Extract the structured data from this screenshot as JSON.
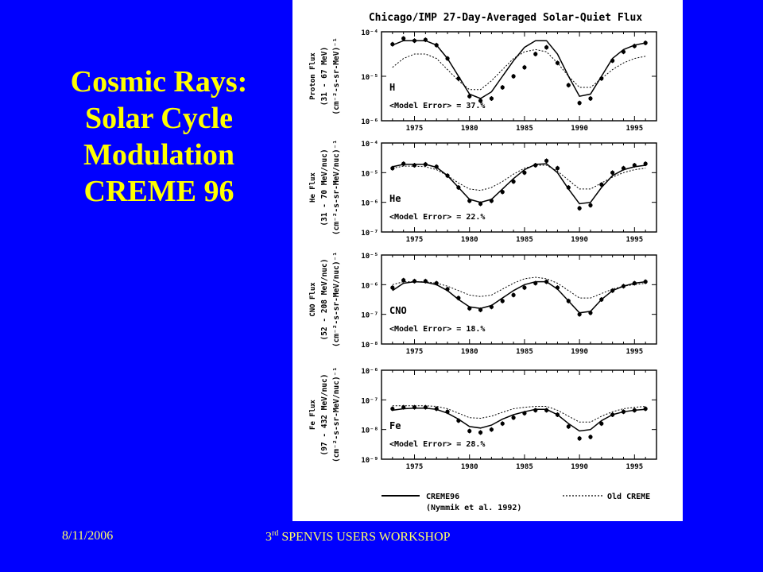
{
  "slide": {
    "title_lines": [
      "Cosmic Rays:",
      "Solar Cycle",
      "Modulation",
      "CREME 96"
    ],
    "footer_date": "8/11/2006",
    "footer_event_ordinal": "3",
    "footer_event_suffix": "rd",
    "footer_event_rest": " SPENVIS USERS WORKSHOP"
  },
  "colors": {
    "background": "#0000ff",
    "title": "#ffff00",
    "footer": "#ffff66",
    "figure_bg": "#ffffff",
    "ink": "#000000"
  },
  "chart_data": {
    "type": "line",
    "title": "Chicago/IMP 27-Day-Averaged Solar-Quiet Flux",
    "xlim": [
      1972,
      1997
    ],
    "x_ticks": [
      1975,
      1980,
      1985,
      1990,
      1995
    ],
    "legend_placement": "bottom",
    "legend": [
      {
        "label": "CREME96",
        "sublabel": "(Nymmik et al. 1992)",
        "style": "solid"
      },
      {
        "label": "Old CREME",
        "style": "dotted"
      }
    ],
    "panels": [
      {
        "species": "H",
        "ylabel_lines": [
          "Proton Flux",
          "(31 - 67 MeV)",
          "(cm⁻²-s-sr-MeV)⁻¹"
        ],
        "y_exp_range": [
          -6,
          -4
        ],
        "y_ticks": [
          "10⁻⁴",
          "10⁻⁵",
          "10⁻⁶"
        ],
        "annotation": "<Model Error> = 37.%",
        "series": [
          {
            "name": "Chicago/IMP data",
            "style": "points",
            "x": [
              1973,
              1974,
              1975,
              1976,
              1977,
              1978,
              1979,
              1980,
              1981,
              1982,
              1983,
              1984,
              1985,
              1986,
              1987,
              1988,
              1989,
              1990,
              1991,
              1992,
              1993,
              1994,
              1995,
              1996
            ],
            "y": [
              -4.28,
              -4.15,
              -4.2,
              -4.18,
              -4.3,
              -4.6,
              -5.05,
              -5.45,
              -5.55,
              -5.5,
              -5.25,
              -5.0,
              -4.8,
              -4.5,
              -4.35,
              -4.7,
              -5.2,
              -5.6,
              -5.5,
              -5.05,
              -4.65,
              -4.45,
              -4.32,
              -4.25
            ]
          },
          {
            "name": "CREME96",
            "style": "solid",
            "x": [
              1973,
              1974,
              1975,
              1976,
              1977,
              1978,
              1979,
              1980,
              1981,
              1982,
              1983,
              1984,
              1985,
              1986,
              1987,
              1988,
              1989,
              1990,
              1991,
              1992,
              1993,
              1994,
              1995,
              1996
            ],
            "y": [
              -4.3,
              -4.2,
              -4.2,
              -4.2,
              -4.3,
              -4.6,
              -5.0,
              -5.4,
              -5.5,
              -5.35,
              -5.0,
              -4.65,
              -4.35,
              -4.2,
              -4.2,
              -4.5,
              -5.0,
              -5.45,
              -5.4,
              -5.0,
              -4.6,
              -4.4,
              -4.3,
              -4.25
            ]
          },
          {
            "name": "Old CREME",
            "style": "dotted",
            "x": [
              1973,
              1974,
              1975,
              1976,
              1977,
              1978,
              1979,
              1980,
              1981,
              1982,
              1983,
              1984,
              1985,
              1986,
              1987,
              1988,
              1989,
              1990,
              1991,
              1992,
              1993,
              1994,
              1995,
              1996
            ],
            "y": [
              -4.8,
              -4.6,
              -4.5,
              -4.5,
              -4.6,
              -4.85,
              -5.1,
              -5.3,
              -5.3,
              -5.1,
              -4.85,
              -4.6,
              -4.45,
              -4.4,
              -4.45,
              -4.7,
              -5.0,
              -5.25,
              -5.25,
              -5.05,
              -4.85,
              -4.7,
              -4.6,
              -4.55
            ]
          }
        ]
      },
      {
        "species": "He",
        "ylabel_lines": [
          "He Flux",
          "(31 - 70 MeV/nuc)",
          "(cm⁻²-s-sr-MeV/nuc)⁻¹"
        ],
        "y_exp_range": [
          -7,
          -4
        ],
        "y_ticks": [
          "10⁻⁴",
          "10⁻⁵",
          "10⁻⁶",
          "10⁻⁷"
        ],
        "annotation": "<Model Error> = 22.%",
        "series": [
          {
            "name": "Chicago/IMP data",
            "style": "points",
            "x": [
              1973,
              1974,
              1975,
              1976,
              1977,
              1978,
              1979,
              1980,
              1981,
              1982,
              1983,
              1984,
              1985,
              1986,
              1987,
              1988,
              1989,
              1990,
              1991,
              1992,
              1993,
              1994,
              1995,
              1996
            ],
            "y": [
              -4.85,
              -4.7,
              -4.75,
              -4.72,
              -4.8,
              -5.1,
              -5.5,
              -5.95,
              -6.05,
              -5.95,
              -5.65,
              -5.3,
              -5.0,
              -4.75,
              -4.6,
              -4.85,
              -5.5,
              -6.2,
              -6.1,
              -5.4,
              -5.0,
              -4.85,
              -4.75,
              -4.7
            ]
          },
          {
            "name": "CREME96",
            "style": "solid",
            "x": [
              1973,
              1974,
              1975,
              1976,
              1977,
              1978,
              1979,
              1980,
              1981,
              1982,
              1983,
              1984,
              1985,
              1986,
              1987,
              1988,
              1989,
              1990,
              1991,
              1992,
              1993,
              1994,
              1995,
              1996
            ],
            "y": [
              -4.8,
              -4.72,
              -4.72,
              -4.72,
              -4.82,
              -5.1,
              -5.5,
              -5.9,
              -6.0,
              -5.9,
              -5.55,
              -5.2,
              -4.9,
              -4.72,
              -4.7,
              -5.0,
              -5.55,
              -6.05,
              -6.0,
              -5.5,
              -5.1,
              -4.9,
              -4.8,
              -4.75
            ]
          },
          {
            "name": "Old CREME",
            "style": "dotted",
            "x": [
              1973,
              1974,
              1975,
              1976,
              1977,
              1978,
              1979,
              1980,
              1981,
              1982,
              1983,
              1984,
              1985,
              1986,
              1987,
              1988,
              1989,
              1990,
              1991,
              1992,
              1993,
              1994,
              1995,
              1996
            ],
            "y": [
              -4.85,
              -4.78,
              -4.78,
              -4.8,
              -4.9,
              -5.1,
              -5.35,
              -5.55,
              -5.6,
              -5.5,
              -5.3,
              -5.05,
              -4.85,
              -4.75,
              -4.75,
              -4.95,
              -5.25,
              -5.55,
              -5.55,
              -5.35,
              -5.15,
              -5.0,
              -4.9,
              -4.85
            ]
          }
        ]
      },
      {
        "species": "CNO",
        "ylabel_lines": [
          "CNO Flux",
          "(52 - 208 MeV/nuc)",
          "(cm⁻²-s-sr-MeV/nuc)⁻¹"
        ],
        "y_exp_range": [
          -8,
          -5
        ],
        "y_ticks": [
          "10⁻⁵",
          "10⁻⁶",
          "10⁻⁷",
          "10⁻⁸"
        ],
        "annotation": "<Model Error> = 18.%",
        "series": [
          {
            "name": "Chicago/IMP data",
            "style": "points",
            "x": [
              1973,
              1974,
              1975,
              1976,
              1977,
              1978,
              1979,
              1980,
              1981,
              1982,
              1983,
              1984,
              1985,
              1986,
              1987,
              1988,
              1989,
              1990,
              1991,
              1992,
              1993,
              1994,
              1995,
              1996
            ],
            "y": [
              -6.1,
              -5.85,
              -5.88,
              -5.88,
              -5.95,
              -6.15,
              -6.45,
              -6.8,
              -6.85,
              -6.75,
              -6.55,
              -6.35,
              -6.1,
              -5.95,
              -5.9,
              -6.1,
              -6.55,
              -7.0,
              -6.95,
              -6.5,
              -6.2,
              -6.05,
              -5.95,
              -5.9
            ]
          },
          {
            "name": "CREME96",
            "style": "solid",
            "x": [
              1973,
              1974,
              1975,
              1976,
              1977,
              1978,
              1979,
              1980,
              1981,
              1982,
              1983,
              1984,
              1985,
              1986,
              1987,
              1988,
              1989,
              1990,
              1991,
              1992,
              1993,
              1994,
              1995,
              1996
            ],
            "y": [
              -6.2,
              -5.95,
              -5.9,
              -5.92,
              -6.0,
              -6.2,
              -6.5,
              -6.75,
              -6.8,
              -6.7,
              -6.45,
              -6.2,
              -6.0,
              -5.9,
              -5.9,
              -6.15,
              -6.55,
              -6.95,
              -6.9,
              -6.5,
              -6.2,
              -6.05,
              -5.95,
              -5.9
            ]
          },
          {
            "name": "Old CREME",
            "style": "dotted",
            "x": [
              1973,
              1974,
              1975,
              1976,
              1977,
              1978,
              1979,
              1980,
              1981,
              1982,
              1983,
              1984,
              1985,
              1986,
              1987,
              1988,
              1989,
              1990,
              1991,
              1992,
              1993,
              1994,
              1995,
              1996
            ],
            "y": [
              -6.0,
              -5.9,
              -5.9,
              -5.9,
              -5.95,
              -6.05,
              -6.2,
              -6.35,
              -6.4,
              -6.35,
              -6.15,
              -5.95,
              -5.8,
              -5.75,
              -5.8,
              -5.95,
              -6.2,
              -6.45,
              -6.45,
              -6.3,
              -6.15,
              -6.05,
              -6.0,
              -5.95
            ]
          }
        ]
      },
      {
        "species": "Fe",
        "ylabel_lines": [
          "Fe Flux",
          "(97 - 432 MeV/nuc)",
          "(cm⁻²-s-sr-MeV/nuc)⁻¹"
        ],
        "y_exp_range": [
          -9,
          -6
        ],
        "y_ticks": [
          "10⁻⁶",
          "10⁻⁷",
          "10⁻⁸",
          "10⁻⁹"
        ],
        "annotation": "<Model Error> = 28.%",
        "series": [
          {
            "name": "Chicago/IMP data",
            "style": "points",
            "x": [
              1973,
              1974,
              1975,
              1976,
              1977,
              1978,
              1979,
              1980,
              1981,
              1982,
              1983,
              1984,
              1985,
              1986,
              1987,
              1988,
              1989,
              1990,
              1991,
              1992,
              1993,
              1994,
              1995,
              1996
            ],
            "y": [
              -7.3,
              -7.25,
              -7.25,
              -7.25,
              -7.3,
              -7.4,
              -7.7,
              -8.05,
              -8.1,
              -8.0,
              -7.8,
              -7.6,
              -7.45,
              -7.35,
              -7.35,
              -7.5,
              -7.9,
              -8.3,
              -8.25,
              -7.8,
              -7.5,
              -7.4,
              -7.35,
              -7.3
            ]
          },
          {
            "name": "CREME96",
            "style": "solid",
            "x": [
              1973,
              1974,
              1975,
              1976,
              1977,
              1978,
              1979,
              1980,
              1981,
              1982,
              1983,
              1984,
              1985,
              1986,
              1987,
              1988,
              1989,
              1990,
              1991,
              1992,
              1993,
              1994,
              1995,
              1996
            ],
            "y": [
              -7.35,
              -7.3,
              -7.28,
              -7.28,
              -7.32,
              -7.45,
              -7.65,
              -7.9,
              -7.95,
              -7.85,
              -7.65,
              -7.5,
              -7.4,
              -7.32,
              -7.32,
              -7.5,
              -7.8,
              -8.05,
              -8.0,
              -7.7,
              -7.5,
              -7.4,
              -7.35,
              -7.32
            ]
          },
          {
            "name": "Old CREME",
            "style": "dotted",
            "x": [
              1973,
              1974,
              1975,
              1976,
              1977,
              1978,
              1979,
              1980,
              1981,
              1982,
              1983,
              1984,
              1985,
              1986,
              1987,
              1988,
              1989,
              1990,
              1991,
              1992,
              1993,
              1994,
              1995,
              1996
            ],
            "y": [
              -7.2,
              -7.2,
              -7.2,
              -7.2,
              -7.22,
              -7.3,
              -7.45,
              -7.6,
              -7.62,
              -7.55,
              -7.42,
              -7.3,
              -7.25,
              -7.22,
              -7.22,
              -7.35,
              -7.55,
              -7.75,
              -7.75,
              -7.55,
              -7.4,
              -7.3,
              -7.25,
              -7.22
            ]
          }
        ]
      }
    ]
  }
}
